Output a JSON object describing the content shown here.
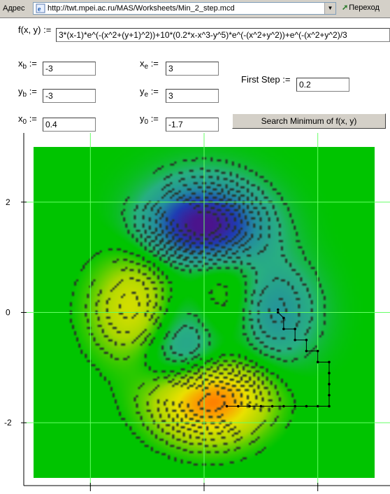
{
  "browser": {
    "address_label": "Адрес",
    "url": "http://twt.mpei.ac.ru/MAS/Worksheets/Min_2_step.mcd",
    "go_label": "Переход"
  },
  "form": {
    "function_label": "f(x, y)",
    "assign": ":=",
    "function_value": "3*(x-1)*e^(-(x^2+(y+1)^2))+10*(0.2*x-x^3-y^5)*e^(-(x^2+y^2))+e^(-(x^2+y^2)/3",
    "xb_main": "x",
    "xb_sub": "b",
    "xb_value": "-3",
    "yb_main": "y",
    "yb_sub": "b",
    "yb_value": "-3",
    "x0_main": "x",
    "x0_sub": "0",
    "x0_value": "0.4",
    "xe_main": "x",
    "xe_sub": "e",
    "xe_value": "3",
    "ye_main": "y",
    "ye_sub": "e",
    "ye_value": "3",
    "y0_main": "y",
    "y0_sub": "0",
    "y0_value": "-1.7",
    "first_step_label": "First Step",
    "first_step_value": "0.2",
    "search_button": "Search Minimum of f(x, y)"
  },
  "chart_data": {
    "type": "heatmap",
    "function": "3*(x-1)*e^(-(x^2+(y+1)^2))+10*(0.2*x-x^3-y^5)*e^(-(x^2+y^2))+e^(-(x^2+y^2)/3",
    "x_range": [
      -3,
      3
    ],
    "y_range": [
      -3,
      3
    ],
    "y_ticks": [
      "2",
      "0",
      "-2"
    ],
    "x_gridlines": [
      -2,
      0,
      2
    ],
    "y_gridlines": [
      -2,
      0,
      2
    ],
    "contour_style": "dashed",
    "colormap": [
      "#00c400",
      "#2a9a8a",
      "#1a3fb0",
      "#4a1a90",
      "#c8d800",
      "#ff8c00",
      "#e00000"
    ],
    "path_points": [
      [
        0.4,
        -1.7
      ],
      [
        0.6,
        -1.7
      ],
      [
        0.8,
        -1.7
      ],
      [
        1.0,
        -1.7
      ],
      [
        1.2,
        -1.7
      ],
      [
        1.4,
        -1.7
      ],
      [
        1.6,
        -1.7
      ],
      [
        1.8,
        -1.7
      ],
      [
        2.0,
        -1.7
      ],
      [
        2.2,
        -1.7
      ],
      [
        2.2,
        -1.5
      ],
      [
        2.2,
        -1.3
      ],
      [
        2.2,
        -1.1
      ],
      [
        2.2,
        -0.9
      ],
      [
        2.0,
        -0.9
      ],
      [
        2.0,
        -0.7
      ],
      [
        1.8,
        -0.7
      ],
      [
        1.8,
        -0.5
      ],
      [
        1.6,
        -0.5
      ],
      [
        1.6,
        -0.3
      ],
      [
        1.4,
        -0.3
      ],
      [
        1.4,
        -0.1
      ],
      [
        1.3,
        0.0
      ],
      [
        1.3,
        0.05
      ]
    ]
  }
}
